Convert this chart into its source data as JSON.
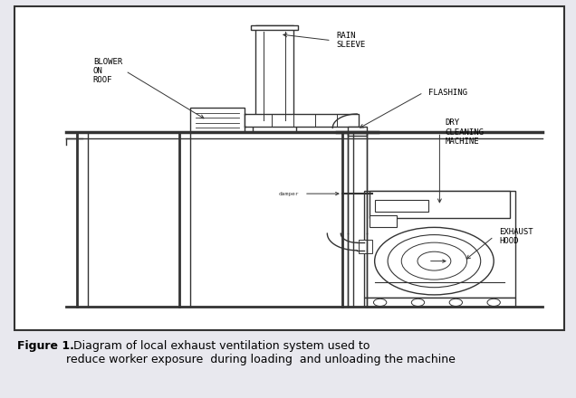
{
  "background_color": "#e8e8ee",
  "diagram_bg": "#ffffff",
  "line_color": "#333333",
  "text_color": "#000000",
  "caption_bold": "Figure 1.",
  "caption_normal": "  Diagram of local exhaust ventilation system used to\nreduce worker exposure  during loading  and unloading the machine",
  "label_rain_sleeve": "RAIN\nSLEEVE",
  "label_blower": "BLOWER\nON\nROOF",
  "label_flashing": "FLASHING",
  "label_dry_cleaning": "DRY\nCLEANING\nMACHINE",
  "label_exhaust_hood": "EXHAUST\nHOOD",
  "label_damper": "damper"
}
